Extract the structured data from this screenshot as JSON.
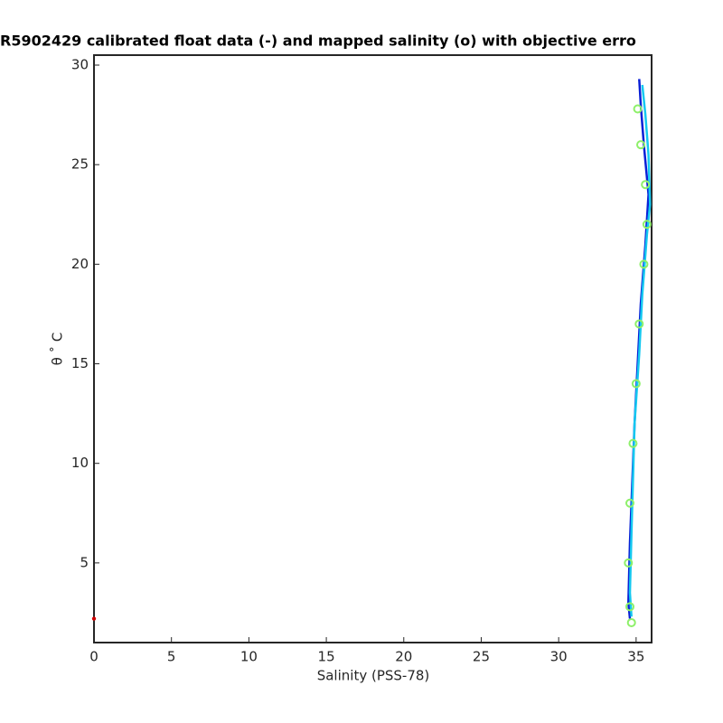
{
  "chart_data": {
    "type": "line",
    "title": "R5902429 calibrated float data (-) and mapped salinity (o) with objective erro",
    "xlabel": "Salinity (PSS-78)",
    "ylabel": "θ ˚ C",
    "xlim": [
      0,
      36
    ],
    "ylim": [
      1,
      30.5
    ],
    "xticks": [
      0,
      5,
      10,
      15,
      20,
      25,
      30,
      35
    ],
    "yticks": [
      5,
      10,
      15,
      20,
      25,
      30
    ],
    "series": [
      {
        "color": "#0a1fd6",
        "style": "line",
        "x": [
          34.6,
          34.5,
          34.6,
          34.9,
          35.1,
          35.3,
          35.6,
          35.8,
          35.5,
          35.3,
          35.2
        ],
        "values": [
          2.2,
          3,
          6,
          12,
          15,
          18,
          21,
          23.5,
          26,
          28,
          29.3
        ]
      },
      {
        "color": "#14c8f0",
        "style": "line",
        "x": [
          34.7,
          34.6,
          34.7,
          34.9,
          35.2,
          35.4,
          35.7,
          35.9,
          35.8,
          35.6,
          35.4
        ],
        "values": [
          2.3,
          3.5,
          6.5,
          12,
          15.5,
          18.5,
          21.5,
          23,
          25.5,
          27.5,
          29
        ]
      },
      {
        "color": "#8ef06a",
        "style": "marker",
        "x": [
          34.7,
          34.6,
          34.5,
          34.6,
          34.8,
          35.0,
          35.2,
          35.5,
          35.7,
          35.6,
          35.3,
          35.1
        ],
        "values": [
          2.0,
          2.8,
          5,
          8,
          11,
          14,
          17,
          20,
          22,
          24,
          26,
          27.8
        ]
      },
      {
        "color": "#d00000",
        "style": "marker",
        "x": [
          0
        ],
        "values": [
          2.2
        ]
      }
    ]
  }
}
